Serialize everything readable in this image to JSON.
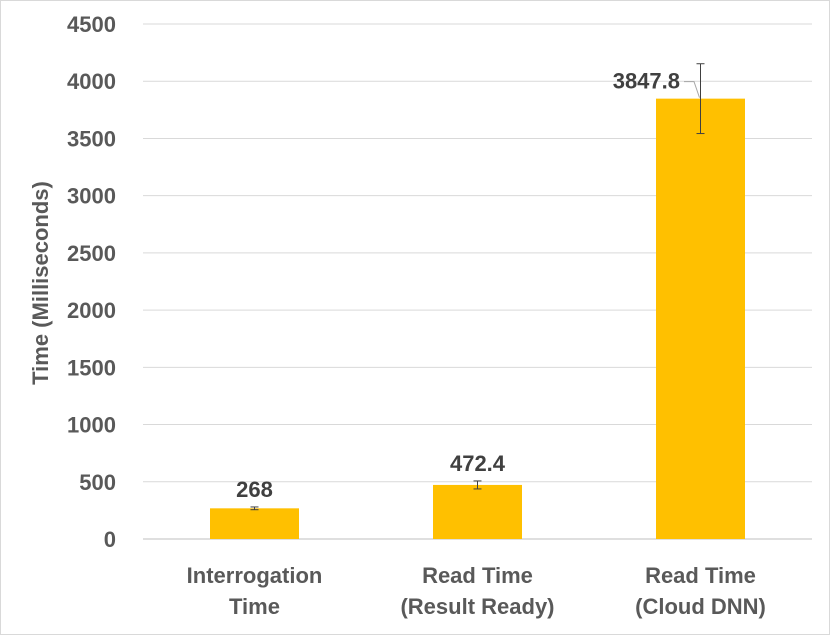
{
  "chart_data": {
    "type": "bar",
    "ylabel": "Time (Milliseconds)",
    "ylim": [
      0,
      4500
    ],
    "yticks": [
      0,
      500,
      1000,
      1500,
      2000,
      2500,
      3000,
      3500,
      4000,
      4500
    ],
    "grid": true,
    "bar_color": "#FFC000",
    "categories": [
      [
        "Interrogation",
        "Time"
      ],
      [
        "Read Time",
        "(Result Ready)"
      ],
      [
        "Read Time",
        "(Cloud DNN)"
      ]
    ],
    "values": [
      268,
      472.4,
      3847.8
    ],
    "data_labels": [
      "268",
      "472.4",
      "3847.8"
    ],
    "error": [
      12,
      35,
      305
    ]
  }
}
